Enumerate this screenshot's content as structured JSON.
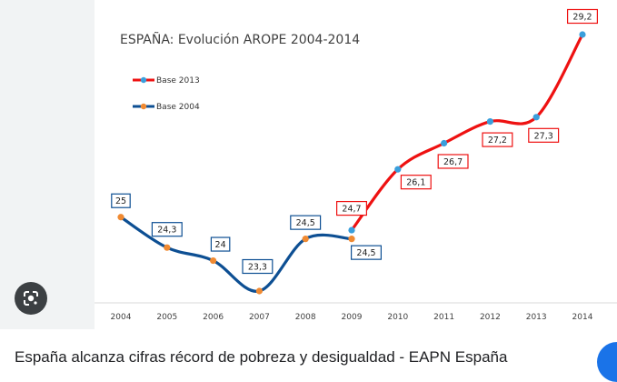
{
  "caption": "España alcanza cifras récord de pobreza y desigualdad - EAPN España",
  "icons": {
    "lens": "google-lens-icon"
  },
  "colors": {
    "base2013": "#ee1111",
    "base2004": "#0d4f93",
    "dot2013": "#3a9fdc",
    "dot2004": "#f08a32"
  },
  "chart_data": {
    "type": "line",
    "title": "ESPAÑA: Evolución AROPE 2004-2014",
    "xlabel": "",
    "ylabel": "",
    "ylim": [
      22.5,
      29.5
    ],
    "grid": false,
    "legend": "top-left",
    "categories": [
      "2004",
      "2005",
      "2006",
      "2007",
      "2008",
      "2009",
      "2010",
      "2011",
      "2012",
      "2013",
      "2014"
    ],
    "series": [
      {
        "name": "Base 2013",
        "x": [
          "2009",
          "2010",
          "2011",
          "2012",
          "2013",
          "2014"
        ],
        "values": [
          24.7,
          26.1,
          26.7,
          27.2,
          27.3,
          29.2
        ],
        "labels": [
          "24,7",
          "26,1",
          "26,7",
          "27,2",
          "27,3",
          "29,2"
        ]
      },
      {
        "name": "Base 2004",
        "x": [
          "2004",
          "2005",
          "2006",
          "2007",
          "2008",
          "2009"
        ],
        "values": [
          25,
          24.3,
          24,
          23.3,
          24.5,
          24.5
        ],
        "labels": [
          "25",
          "24,3",
          "24",
          "23,3",
          "24,5",
          "24,5"
        ]
      }
    ]
  }
}
